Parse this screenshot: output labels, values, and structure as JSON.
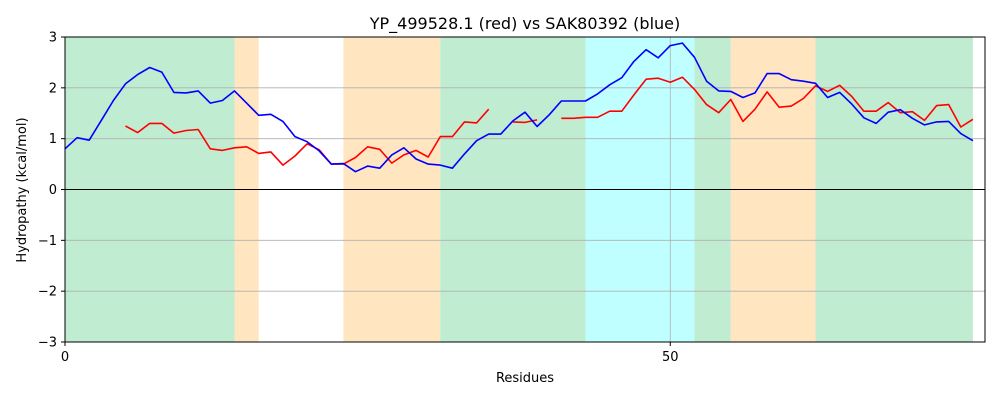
{
  "chart_data": {
    "type": "line",
    "title": "YP_499528.1 (red) vs SAK80392 (blue)",
    "xlabel": "Residues",
    "ylabel": "Hydropathy (kcal/mol)",
    "xlim": [
      0,
      76
    ],
    "ylim": [
      -3,
      3
    ],
    "xticks": [
      0,
      50
    ],
    "yticks": [
      -3,
      -2,
      -1,
      0,
      1,
      2,
      3
    ],
    "grid": true,
    "legend": "none",
    "bands": [
      {
        "start": 0,
        "end": 14,
        "color": "#c0ecd2"
      },
      {
        "start": 14,
        "end": 16,
        "color": "#ffe6c0"
      },
      {
        "start": 23,
        "end": 31,
        "color": "#ffe6c0"
      },
      {
        "start": 31,
        "end": 43,
        "color": "#c0ecd2"
      },
      {
        "start": 43,
        "end": 52,
        "color": "#c0ffff"
      },
      {
        "start": 52,
        "end": 55,
        "color": "#c0ecd2"
      },
      {
        "start": 55,
        "end": 62,
        "color": "#ffe6c0"
      },
      {
        "start": 62,
        "end": 75,
        "color": "#c0ecd2"
      }
    ],
    "series": [
      {
        "color": "#ff0000",
        "points": [
          [
            5,
            1.25
          ],
          [
            6,
            1.12
          ],
          [
            7,
            1.3
          ],
          [
            8,
            1.3
          ],
          [
            9,
            1.11
          ],
          [
            10,
            1.16
          ],
          [
            11,
            1.18
          ],
          [
            12,
            0.8
          ],
          [
            13,
            0.77
          ],
          [
            14,
            0.82
          ],
          [
            15,
            0.84
          ],
          [
            16,
            0.71
          ],
          [
            17,
            0.74
          ],
          [
            18,
            0.48
          ],
          [
            19,
            0.66
          ],
          [
            20,
            0.9
          ],
          [
            21,
            0.78
          ],
          [
            22,
            0.5
          ],
          [
            23,
            0.5
          ],
          [
            24,
            0.63
          ],
          [
            25,
            0.84
          ],
          [
            26,
            0.79
          ],
          [
            27,
            0.52
          ],
          [
            28,
            0.68
          ],
          [
            29,
            0.77
          ],
          [
            30,
            0.64
          ],
          [
            31,
            1.04
          ],
          [
            32,
            1.04
          ],
          [
            33,
            1.33
          ],
          [
            34,
            1.31
          ],
          [
            35,
            1.58
          ],
          null,
          [
            37,
            1.33
          ],
          [
            38,
            1.32
          ],
          [
            39,
            1.37
          ],
          null,
          [
            41,
            1.4
          ],
          [
            42,
            1.4
          ],
          [
            43,
            1.42
          ],
          [
            44,
            1.42
          ],
          [
            45,
            1.54
          ],
          [
            46,
            1.54
          ],
          [
            47,
            1.86
          ],
          [
            48,
            2.17
          ],
          [
            49,
            2.19
          ],
          [
            50,
            2.11
          ],
          [
            51,
            2.21
          ],
          [
            52,
            1.97
          ],
          [
            53,
            1.67
          ],
          [
            54,
            1.51
          ],
          [
            55,
            1.77
          ],
          [
            56,
            1.34
          ],
          [
            57,
            1.58
          ],
          [
            58,
            1.92
          ],
          [
            59,
            1.62
          ],
          [
            60,
            1.64
          ],
          [
            61,
            1.79
          ],
          [
            62,
            2.04
          ],
          [
            63,
            1.93
          ],
          [
            64,
            2.05
          ],
          [
            65,
            1.83
          ],
          [
            66,
            1.54
          ],
          [
            67,
            1.54
          ],
          [
            68,
            1.71
          ],
          [
            69,
            1.51
          ],
          [
            70,
            1.53
          ],
          [
            71,
            1.36
          ],
          [
            72,
            1.65
          ],
          [
            73,
            1.67
          ],
          [
            74,
            1.23
          ],
          [
            75,
            1.38
          ]
        ]
      },
      {
        "color": "#0000ff",
        "points": [
          [
            0,
            0.8
          ],
          [
            1,
            1.02
          ],
          [
            2,
            0.97
          ],
          [
            3,
            1.36
          ],
          [
            4,
            1.75
          ],
          [
            5,
            2.08
          ],
          [
            6,
            2.26
          ],
          [
            7,
            2.4
          ],
          [
            8,
            2.31
          ],
          [
            9,
            1.91
          ],
          [
            10,
            1.9
          ],
          [
            11,
            1.94
          ],
          [
            12,
            1.7
          ],
          [
            13,
            1.75
          ],
          [
            14,
            1.94
          ],
          [
            15,
            1.7
          ],
          [
            16,
            1.46
          ],
          [
            17,
            1.48
          ],
          [
            18,
            1.34
          ],
          [
            19,
            1.04
          ],
          [
            20,
            0.94
          ],
          [
            21,
            0.76
          ],
          [
            22,
            0.5
          ],
          [
            23,
            0.51
          ],
          [
            24,
            0.35
          ],
          [
            25,
            0.46
          ],
          [
            26,
            0.42
          ],
          [
            27,
            0.68
          ],
          [
            28,
            0.82
          ],
          [
            29,
            0.6
          ],
          [
            30,
            0.5
          ],
          [
            31,
            0.48
          ],
          [
            32,
            0.42
          ],
          [
            33,
            0.7
          ],
          [
            34,
            0.96
          ],
          [
            35,
            1.09
          ],
          [
            36,
            1.09
          ],
          [
            37,
            1.35
          ],
          [
            38,
            1.52
          ],
          [
            39,
            1.24
          ],
          [
            40,
            1.47
          ],
          [
            41,
            1.74
          ],
          [
            42,
            1.74
          ],
          [
            43,
            1.74
          ],
          [
            44,
            1.88
          ],
          [
            45,
            2.06
          ],
          [
            46,
            2.2
          ],
          [
            47,
            2.52
          ],
          [
            48,
            2.75
          ],
          [
            49,
            2.59
          ],
          [
            50,
            2.83
          ],
          [
            51,
            2.88
          ],
          [
            52,
            2.6
          ],
          [
            53,
            2.13
          ],
          [
            54,
            1.94
          ],
          [
            55,
            1.93
          ],
          [
            56,
            1.81
          ],
          [
            57,
            1.9
          ],
          [
            58,
            2.28
          ],
          [
            59,
            2.28
          ],
          [
            60,
            2.16
          ],
          [
            61,
            2.13
          ],
          [
            62,
            2.09
          ],
          [
            63,
            1.81
          ],
          [
            64,
            1.91
          ],
          [
            65,
            1.68
          ],
          [
            66,
            1.41
          ],
          [
            67,
            1.3
          ],
          [
            68,
            1.52
          ],
          [
            69,
            1.57
          ],
          [
            70,
            1.4
          ],
          [
            71,
            1.27
          ],
          [
            72,
            1.33
          ],
          [
            73,
            1.34
          ],
          [
            74,
            1.1
          ],
          [
            75,
            0.96
          ]
        ]
      }
    ]
  }
}
